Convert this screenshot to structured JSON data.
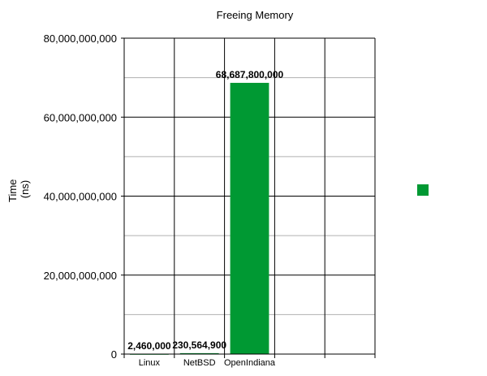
{
  "chart_data": {
    "type": "bar",
    "title": "Freeing Memory",
    "ylabel_line1": "Time",
    "ylabel_line2": "(ns)",
    "xlabel": "",
    "categories": [
      "Linux",
      "NetBSD",
      "OpenIndiana",
      "",
      ""
    ],
    "values": [
      2460000,
      230564900,
      68687800000,
      null,
      null
    ],
    "data_labels": [
      "2,460,000",
      "230,564,900",
      "68,687,800,000",
      "",
      ""
    ],
    "ylim": [
      0,
      80000000000
    ],
    "yticks": [
      0,
      20000000000,
      40000000000,
      60000000000,
      80000000000
    ],
    "ytick_labels": [
      "0",
      "20,000,000,000",
      "40,000,000,000",
      "60,000,000,000",
      "80,000,000,000"
    ],
    "grid": true,
    "legend": "right",
    "bar_color": "#009933"
  }
}
